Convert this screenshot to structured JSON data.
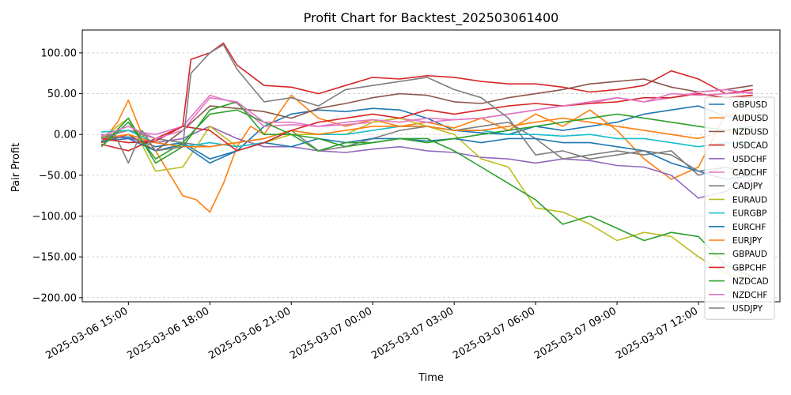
{
  "chart_data": {
    "type": "line",
    "title": "Profit Chart for Backtest_202503061400",
    "xlabel": "Time",
    "ylabel": "Pair Profit",
    "ylim": [
      -205,
      128
    ],
    "xlim_hours": [
      -0.7,
      25.0
    ],
    "x_origin": "2025-03-06 14:00",
    "x_unit": "hours since origin",
    "yticks": [
      100,
      50,
      0,
      -50,
      -100,
      -150,
      -200
    ],
    "ytick_labels": [
      "100.00",
      "50.00",
      "0.00",
      "−50.00",
      "−100.00",
      "−150.00",
      "−200.00"
    ],
    "xticks_hours": [
      1,
      4,
      7,
      10,
      13,
      16,
      19,
      22
    ],
    "xtick_labels": [
      "2025-03-06 15:00",
      "2025-03-06 18:00",
      "2025-03-06 21:00",
      "2025-03-07 00:00",
      "2025-03-07 03:00",
      "2025-03-07 06:00",
      "2025-03-07 09:00",
      "2025-03-07 12:00"
    ],
    "grid": "horizontal dashed",
    "legend_position": "right",
    "series": [
      {
        "name": "GBPUSD",
        "color": "#1f77b4",
        "x": [
          0,
          1,
          2,
          3,
          4,
          5,
          6,
          7,
          8,
          9,
          10,
          11,
          12,
          13,
          14,
          15,
          16,
          17,
          18,
          19,
          20,
          21,
          22,
          23,
          24
        ],
        "values": [
          -5,
          -3,
          -15,
          -10,
          -30,
          -20,
          10,
          25,
          30,
          28,
          32,
          30,
          20,
          5,
          2,
          0,
          10,
          5,
          10,
          15,
          25,
          30,
          35,
          22,
          20
        ]
      },
      {
        "name": "AUDUSD",
        "color": "#ff7f0e",
        "x": [
          0,
          0.6,
          1,
          1.5,
          2,
          3,
          3.5,
          4,
          4.5,
          5,
          5.5,
          6,
          7,
          8,
          9,
          10,
          11,
          12,
          13,
          14,
          15,
          16,
          17,
          18,
          19,
          20,
          21,
          22,
          23,
          24
        ],
        "values": [
          -10,
          15,
          42,
          0,
          -20,
          -75,
          -80,
          -95,
          -60,
          -15,
          10,
          0,
          48,
          20,
          10,
          18,
          10,
          15,
          8,
          20,
          5,
          25,
          10,
          30,
          5,
          -30,
          -55,
          -40,
          25,
          20
        ]
      },
      {
        "name": "NZDUSD",
        "color": "#8c564b",
        "x": [
          0,
          1,
          2,
          3,
          4,
          5,
          6,
          7,
          8,
          9,
          10,
          11,
          12,
          13,
          14,
          15,
          16,
          17,
          18,
          19,
          20,
          21,
          22,
          23,
          24
        ],
        "values": [
          -10,
          0,
          -20,
          5,
          35,
          32,
          28,
          20,
          32,
          38,
          45,
          50,
          48,
          40,
          38,
          45,
          50,
          55,
          62,
          65,
          68,
          58,
          52,
          55,
          60
        ]
      },
      {
        "name": "USDCAD",
        "color": "#d62728",
        "x": [
          0,
          1,
          2,
          3,
          3.3,
          4,
          4.5,
          5,
          6,
          7,
          8,
          9,
          10,
          11,
          12,
          13,
          14,
          15,
          16,
          17,
          18,
          19,
          20,
          21,
          22,
          23,
          24
        ],
        "values": [
          -12,
          -20,
          -5,
          10,
          92,
          100,
          112,
          85,
          60,
          58,
          50,
          60,
          70,
          68,
          72,
          70,
          65,
          62,
          62,
          58,
          52,
          55,
          60,
          78,
          68,
          50,
          55
        ]
      },
      {
        "name": "USDCHF",
        "color": "#9467bd",
        "x": [
          0,
          1,
          2,
          3,
          4,
          5,
          6,
          7,
          8,
          9,
          10,
          11,
          12,
          13,
          14,
          15,
          16,
          17,
          18,
          19,
          20,
          21,
          22,
          23,
          24
        ],
        "values": [
          0,
          -5,
          -10,
          -5,
          10,
          -5,
          -15,
          -15,
          -20,
          -22,
          -18,
          -15,
          -20,
          -22,
          -28,
          -30,
          -35,
          -30,
          -32,
          -38,
          -40,
          -50,
          -78,
          -70,
          -55
        ]
      },
      {
        "name": "CADCHF",
        "color": "#e377c2",
        "x": [
          0,
          1,
          2,
          3,
          4,
          5,
          6,
          7,
          8,
          9,
          10,
          11,
          12,
          13,
          14,
          15,
          16,
          17,
          18,
          19,
          20,
          21,
          22,
          23,
          24
        ],
        "values": [
          -3,
          5,
          0,
          10,
          48,
          38,
          10,
          12,
          10,
          12,
          15,
          20,
          15,
          18,
          20,
          25,
          30,
          35,
          38,
          45,
          40,
          45,
          52,
          55,
          50
        ]
      },
      {
        "name": "CADJPY",
        "color": "#7f7f7f",
        "x": [
          0,
          1,
          2,
          3,
          4,
          5,
          6,
          7,
          8,
          9,
          10,
          11,
          12,
          13,
          14,
          15,
          16,
          17,
          18,
          19,
          20,
          21,
          22,
          23,
          24
        ],
        "values": [
          -3,
          5,
          -5,
          -10,
          -15,
          -10,
          -5,
          5,
          -20,
          -15,
          -5,
          5,
          10,
          5,
          10,
          15,
          -5,
          -30,
          -25,
          -20,
          -25,
          -20,
          -50,
          -40,
          -45
        ]
      },
      {
        "name": "EURAUD",
        "color": "#bcbd22",
        "x": [
          0,
          1,
          2,
          3,
          4,
          5,
          6,
          7,
          8,
          9,
          10,
          11,
          12,
          13,
          14,
          15,
          16,
          17,
          18,
          19,
          20,
          21,
          22,
          23,
          24
        ],
        "values": [
          -5,
          20,
          -45,
          -40,
          10,
          -15,
          -10,
          0,
          0,
          0,
          15,
          20,
          10,
          0,
          -30,
          -40,
          -90,
          -95,
          -110,
          -130,
          -120,
          -125,
          -150,
          -170,
          -180
        ]
      },
      {
        "name": "EURGBP",
        "color": "#17becf",
        "x": [
          0,
          1,
          2,
          3,
          4,
          5,
          6,
          7,
          8,
          9,
          10,
          11,
          12,
          13,
          14,
          15,
          16,
          17,
          18,
          19,
          20,
          21,
          22,
          23,
          24
        ],
        "values": [
          3,
          5,
          -10,
          -15,
          -10,
          -15,
          -10,
          5,
          0,
          0,
          5,
          10,
          10,
          5,
          5,
          0,
          0,
          -2,
          0,
          -5,
          -5,
          -10,
          -15,
          -10,
          -12
        ]
      },
      {
        "name": "EURCHF",
        "color": "#1f77b4",
        "x": [
          0,
          1,
          2,
          3,
          4,
          5,
          6,
          7,
          8,
          9,
          10,
          11,
          12,
          13,
          14,
          15,
          16,
          17,
          18,
          19,
          20,
          21,
          22,
          23,
          24
        ],
        "values": [
          -8,
          -5,
          -20,
          -12,
          -35,
          -20,
          -10,
          -15,
          -5,
          -10,
          -5,
          -5,
          -8,
          -5,
          -10,
          -5,
          -5,
          -10,
          -10,
          -15,
          -20,
          -35,
          -45,
          -55,
          -50
        ]
      },
      {
        "name": "EURJPY",
        "color": "#ff7f0e",
        "x": [
          0,
          1,
          2,
          3,
          4,
          5,
          6,
          7,
          8,
          9,
          10,
          11,
          12,
          13,
          14,
          15,
          16,
          17,
          18,
          19,
          20,
          21,
          22,
          23,
          24
        ],
        "values": [
          -5,
          0,
          -10,
          -15,
          -15,
          -10,
          -5,
          5,
          0,
          5,
          10,
          10,
          10,
          5,
          5,
          10,
          15,
          20,
          15,
          10,
          5,
          0,
          -5,
          5,
          0
        ]
      },
      {
        "name": "GBPAUD",
        "color": "#2ca02c",
        "x": [
          0,
          1,
          2,
          3,
          4,
          5,
          6,
          7,
          8,
          9,
          10,
          11,
          12,
          13,
          14,
          15,
          16,
          17,
          18,
          19,
          20,
          21,
          22,
          23,
          24
        ],
        "values": [
          -15,
          20,
          -35,
          -15,
          30,
          40,
          0,
          0,
          -20,
          -10,
          -10,
          -5,
          -5,
          -20,
          -40,
          -60,
          -80,
          -110,
          -100,
          -115,
          -130,
          -120,
          -125,
          -160,
          -175
        ]
      },
      {
        "name": "GBPCHF",
        "color": "#d62728",
        "x": [
          0,
          1,
          2,
          3,
          4,
          5,
          6,
          7,
          8,
          9,
          10,
          11,
          12,
          13,
          14,
          15,
          16,
          17,
          18,
          19,
          20,
          21,
          22,
          23,
          24
        ],
        "values": [
          -5,
          -10,
          -8,
          10,
          5,
          -20,
          -10,
          5,
          15,
          20,
          25,
          20,
          30,
          25,
          30,
          35,
          38,
          35,
          38,
          40,
          45,
          45,
          50,
          45,
          48
        ]
      },
      {
        "name": "NZDCAD",
        "color": "#2ca02c",
        "x": [
          0,
          1,
          2,
          3,
          4,
          5,
          6,
          7,
          8,
          9,
          10,
          11,
          12,
          13,
          14,
          15,
          16,
          17,
          18,
          19,
          20,
          21,
          22,
          23,
          24
        ],
        "values": [
          -15,
          15,
          -30,
          -10,
          25,
          30,
          15,
          0,
          -5,
          -15,
          -10,
          -5,
          -10,
          -5,
          0,
          5,
          10,
          15,
          20,
          25,
          20,
          15,
          10,
          5,
          10
        ]
      },
      {
        "name": "NZDCHF",
        "color": "#e377c2",
        "x": [
          0,
          1,
          2,
          3,
          4,
          5,
          6,
          7,
          8,
          9,
          10,
          11,
          12,
          13,
          14,
          15,
          16,
          17,
          18,
          19,
          20,
          21,
          22,
          23,
          24
        ],
        "values": [
          -2,
          10,
          -5,
          5,
          45,
          40,
          15,
          15,
          10,
          15,
          18,
          15,
          20,
          18,
          20,
          25,
          30,
          35,
          40,
          45,
          40,
          50,
          48,
          50,
          52
        ]
      },
      {
        "name": "USDJPY",
        "color": "#7f7f7f",
        "x": [
          0,
          0.5,
          1,
          1.5,
          2,
          3,
          3.3,
          4,
          4.5,
          5,
          6,
          7,
          8,
          9,
          10,
          11,
          12,
          13,
          14,
          15,
          16,
          17,
          18,
          19,
          20,
          21,
          22,
          23,
          24
        ],
        "values": [
          -5,
          0,
          -35,
          5,
          -20,
          -15,
          75,
          100,
          110,
          80,
          40,
          45,
          35,
          55,
          60,
          65,
          70,
          55,
          45,
          20,
          -25,
          -20,
          -30,
          -25,
          -20,
          -25,
          -45,
          -40,
          -50
        ]
      }
    ]
  }
}
